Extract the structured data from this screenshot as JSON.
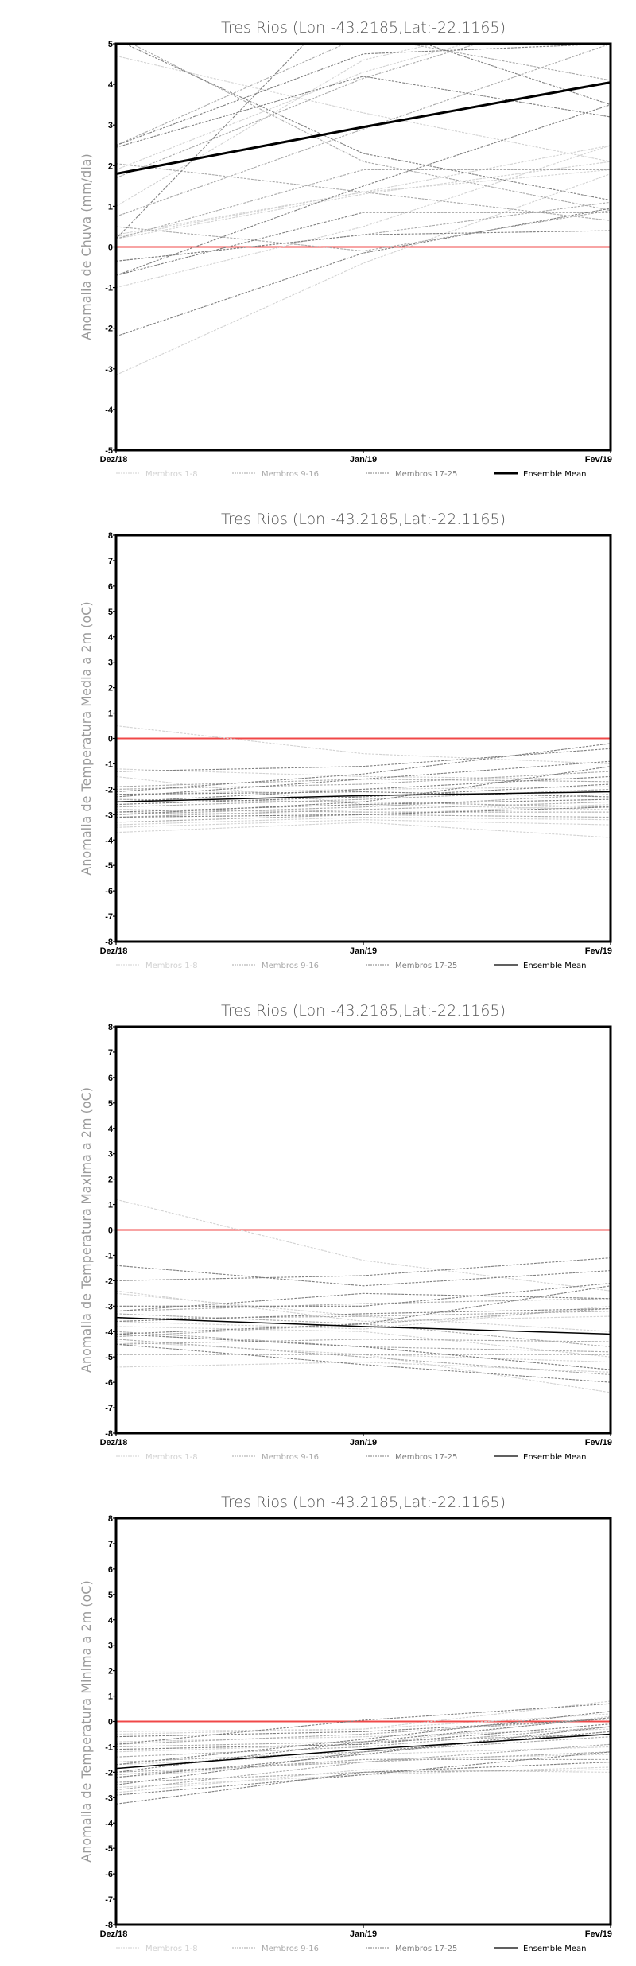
{
  "chart_data": [
    {
      "type": "line",
      "title": "Tres Rios (Lon:-43.2185,Lat:-22.1165)",
      "ylabel": "Anomalia de Chuva (mm/dia)",
      "xlabel": "",
      "categories": [
        "Dez/18",
        "Jan/19",
        "Fev/19"
      ],
      "ylim": [
        -5,
        5
      ],
      "yticks": [
        "-5",
        "-4",
        "-3",
        "-2",
        "-1",
        "0",
        "1",
        "2",
        "3",
        "4",
        "5"
      ],
      "reference_line": 0,
      "mean_thick": true,
      "legend": [
        "Membros 1-8",
        "Membros 9-16",
        "Membros 17-25",
        "Ensemble Mean"
      ],
      "members": [
        [
          4.7,
          3.3,
          2.1
        ],
        [
          -3.15,
          -0.4,
          1.8
        ],
        [
          -1.0,
          0.5,
          2.5
        ],
        [
          0.3,
          1.35,
          2.5
        ],
        [
          1.0,
          4.6,
          6.0
        ],
        [
          1.9,
          4.3,
          6.0
        ],
        [
          0.25,
          1.35,
          1.9
        ],
        [
          0.2,
          1.3,
          2.1
        ],
        [
          2.05,
          1.35,
          0.65
        ],
        [
          5.2,
          2.1,
          0.9
        ],
        [
          0.2,
          1.9,
          1.9
        ],
        [
          2.5,
          5.2,
          4.1
        ],
        [
          1.7,
          4.15,
          6.0
        ],
        [
          -0.35,
          0.3,
          1.1
        ],
        [
          0.5,
          -0.1,
          0.9
        ],
        [
          0.75,
          2.9,
          5.0
        ],
        [
          -2.2,
          -0.15,
          0.95
        ],
        [
          0.2,
          6.5,
          7.0
        ],
        [
          2.5,
          4.75,
          5.0
        ],
        [
          2.45,
          4.2,
          3.2
        ],
        [
          5.1,
          2.3,
          1.15
        ],
        [
          -0.7,
          1.5,
          3.5
        ],
        [
          -0.7,
          0.85,
          0.85
        ],
        [
          -0.35,
          0.3,
          0.4
        ],
        [
          6.0,
          5.5,
          3.5
        ]
      ],
      "mean": [
        1.8,
        2.95,
        4.05
      ]
    },
    {
      "type": "line",
      "title": "Tres Rios (Lon:-43.2185,Lat:-22.1165)",
      "ylabel": "Anomalia de Temperatura Media a 2m (oC)",
      "xlabel": "",
      "categories": [
        "Dez/18",
        "Jan/19",
        "Fev/19"
      ],
      "ylim": [
        -8,
        8
      ],
      "yticks": [
        "-8",
        "-7",
        "-6",
        "-5",
        "-4",
        "-3",
        "-2",
        "-1",
        "0",
        "1",
        "2",
        "3",
        "4",
        "5",
        "6",
        "7",
        "8"
      ],
      "reference_line": 0,
      "mean_thick": false,
      "legend": [
        "Membros 1-8",
        "Membros 9-16",
        "Membros 17-25",
        "Ensemble Mean"
      ],
      "members": [
        [
          0.5,
          -0.6,
          -1.0
        ],
        [
          -3.7,
          -3.3,
          -3.9
        ],
        [
          -1.5,
          -2.6,
          -2.8
        ],
        [
          -3.5,
          -3.2,
          -3.4
        ],
        [
          -1.2,
          -1.5,
          -1.6
        ],
        [
          -2.9,
          -3.0,
          -2.6
        ],
        [
          -3.4,
          -3.1,
          -3.2
        ],
        [
          -2.2,
          -2.0,
          -1.9
        ],
        [
          -3.0,
          -2.7,
          -2.2
        ],
        [
          -2.0,
          -1.8,
          -1.3
        ],
        [
          -3.3,
          -3.0,
          -3.1
        ],
        [
          -2.7,
          -2.4,
          -2.0
        ],
        [
          -2.8,
          -2.9,
          -2.9
        ],
        [
          -3.1,
          -2.8,
          -2.5
        ],
        [
          -2.4,
          -2.5,
          -2.7
        ],
        [
          -1.9,
          -1.6,
          -1.7
        ],
        [
          -2.1,
          -1.4,
          -0.2
        ],
        [
          -2.6,
          -2.3,
          -1.8
        ],
        [
          -3.0,
          -2.5,
          -1.1
        ],
        [
          -2.3,
          -1.6,
          -0.9
        ],
        [
          -2.9,
          -2.6,
          -2.4
        ],
        [
          -2.5,
          -2.0,
          -1.5
        ],
        [
          -3.1,
          -3.0,
          -2.7
        ],
        [
          -2.2,
          -2.1,
          -2.3
        ],
        [
          -1.3,
          -1.1,
          -0.4
        ]
      ],
      "mean": [
        -2.5,
        -2.25,
        -2.1
      ]
    },
    {
      "type": "line",
      "title": "Tres Rios (Lon:-43.2185,Lat:-22.1165)",
      "ylabel": "Anomalia de Temperatura Maxima a 2m (oC)",
      "xlabel": "",
      "categories": [
        "Dez/18",
        "Jan/19",
        "Fev/19"
      ],
      "ylim": [
        -8,
        8
      ],
      "yticks": [
        "-8",
        "-7",
        "-6",
        "-5",
        "-4",
        "-3",
        "-2",
        "-1",
        "0",
        "1",
        "2",
        "3",
        "4",
        "5",
        "6",
        "7",
        "8"
      ],
      "reference_line": 0,
      "mean_thick": false,
      "legend": [
        "Membros 1-8",
        "Membros 9-16",
        "Membros 17-25",
        "Ensemble Mean"
      ],
      "members": [
        [
          1.2,
          -1.2,
          -2.4
        ],
        [
          -5.4,
          -5.2,
          -5.6
        ],
        [
          -2.4,
          -3.6,
          -3.4
        ],
        [
          -2.5,
          -3.4,
          -4.0
        ],
        [
          -3.8,
          -4.0,
          -5.0
        ],
        [
          -4.9,
          -4.9,
          -5.2
        ],
        [
          -3.6,
          -3.9,
          -3.0
        ],
        [
          -4.4,
          -4.9,
          -6.4
        ],
        [
          -3.2,
          -2.9,
          -2.7
        ],
        [
          -4.1,
          -4.6,
          -4.8
        ],
        [
          -4.5,
          -4.3,
          -4.4
        ],
        [
          -3.5,
          -3.4,
          -3.2
        ],
        [
          -4.0,
          -4.6,
          -5.5
        ],
        [
          -4.3,
          -5.0,
          -5.7
        ],
        [
          -3.3,
          -3.7,
          -4.6
        ],
        [
          -4.2,
          -3.7,
          -3.1
        ],
        [
          -2.0,
          -1.8,
          -1.1
        ],
        [
          -1.4,
          -2.2,
          -1.6
        ],
        [
          -3.0,
          -3.0,
          -2.1
        ],
        [
          -4.1,
          -3.7,
          -2.2
        ],
        [
          -3.2,
          -2.5,
          -2.7
        ],
        [
          -4.5,
          -5.3,
          -6.0
        ],
        [
          -4.1,
          -4.6,
          -5.5
        ],
        [
          -3.6,
          -3.3,
          -3.1
        ],
        [
          -4.9,
          -4.9,
          -4.9
        ]
      ],
      "mean": [
        -3.45,
        -3.8,
        -4.1
      ]
    },
    {
      "type": "line",
      "title": "Tres Rios (Lon:-43.2185,Lat:-22.1165)",
      "ylabel": "Anomalia de Temperatura Minima a 2m (oC)",
      "xlabel": "",
      "categories": [
        "Dez/18",
        "Jan/19",
        "Fev/19"
      ],
      "ylim": [
        -8,
        8
      ],
      "yticks": [
        "-8",
        "-7",
        "-6",
        "-5",
        "-4",
        "-3",
        "-2",
        "-1",
        "0",
        "1",
        "2",
        "3",
        "4",
        "5",
        "6",
        "7",
        "8"
      ],
      "reference_line": 0,
      "mean_thick": false,
      "legend": [
        "Membros 1-8",
        "Membros 9-16",
        "Membros 17-25",
        "Ensemble Mean"
      ],
      "members": [
        [
          -0.4,
          -0.3,
          0.8
        ],
        [
          -2.8,
          -1.9,
          -2.0
        ],
        [
          -2.2,
          -1.5,
          -1.3
        ],
        [
          -0.8,
          -0.6,
          -0.3
        ],
        [
          -2.6,
          -2.1,
          -1.8
        ],
        [
          -1.2,
          -0.9,
          0.2
        ],
        [
          -1.7,
          -1.3,
          -1.0
        ],
        [
          -0.5,
          -0.3,
          0.3
        ],
        [
          -1.0,
          -0.8,
          -0.5
        ],
        [
          -2.0,
          -1.6,
          -1.2
        ],
        [
          -2.4,
          -2.0,
          -1.9
        ],
        [
          -1.4,
          -1.0,
          -0.2
        ],
        [
          -2.7,
          -1.6,
          -0.9
        ],
        [
          -0.9,
          -0.5,
          0.1
        ],
        [
          -1.6,
          -1.2,
          -0.6
        ],
        [
          -2.1,
          -1.5,
          -1.5
        ],
        [
          -3.25,
          -2.0,
          -1.6
        ],
        [
          -0.9,
          0.05,
          0.7
        ],
        [
          -2.9,
          -2.1,
          -1.2
        ],
        [
          -1.7,
          -0.7,
          0.4
        ],
        [
          -2.5,
          -1.2,
          -0.4
        ],
        [
          -0.6,
          -0.4,
          0.1
        ],
        [
          -1.1,
          -0.9,
          -0.1
        ],
        [
          -2.2,
          -1.3,
          -0.2
        ],
        [
          -2.0,
          -0.8,
          0.15
        ]
      ],
      "mean": [
        -1.85,
        -1.1,
        -0.5
      ]
    }
  ],
  "colors": {
    "members_1_8": "#d2d2d2",
    "members_9_16": "#a9a9a9",
    "members_17_25": "#7f7f7f",
    "mean": "#000000",
    "zero_line": "#f04848"
  }
}
